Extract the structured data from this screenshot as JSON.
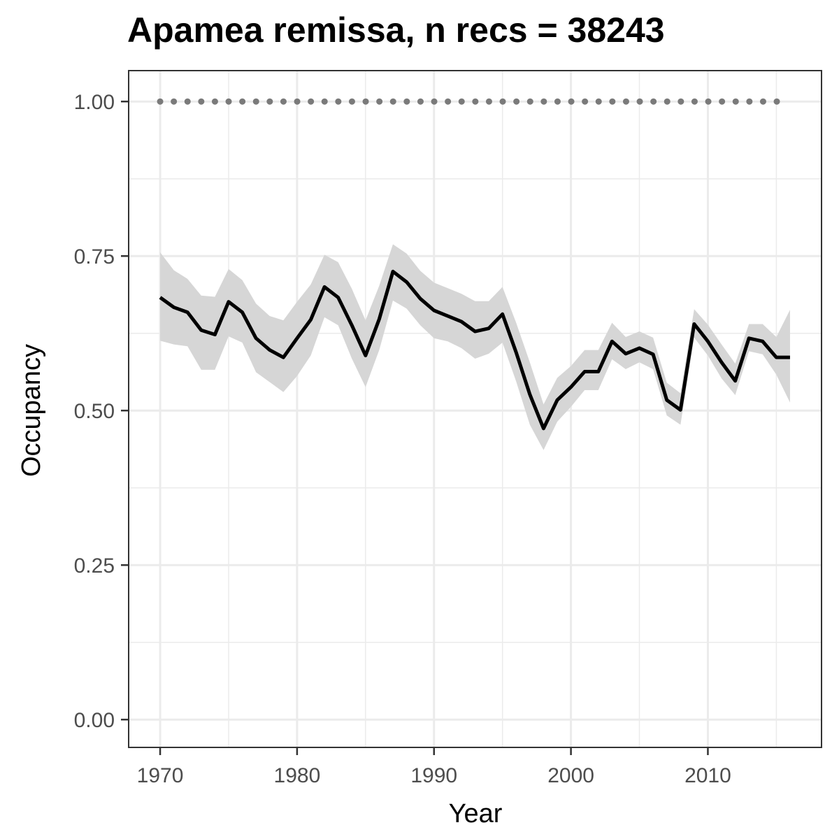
{
  "chart_data": {
    "type": "line",
    "title": "Apamea remissa, n recs = 38243",
    "xlabel": "Year",
    "ylabel": "Occupancy",
    "xlim": [
      1967.7,
      2018.3
    ],
    "ylim": [
      -0.045,
      1.05
    ],
    "x_ticks": [
      1970,
      1980,
      1990,
      2000,
      2010
    ],
    "y_ticks": [
      0.0,
      0.25,
      0.5,
      0.75,
      1.0
    ],
    "y_tick_labels": [
      "0.00",
      "0.25",
      "0.50",
      "0.75",
      "1.00"
    ],
    "grid": true,
    "colors": {
      "line": "#000000",
      "ribbon": "#d6d6d6",
      "dots": "#7a7a7a",
      "grid": "#ebebeb",
      "border": "#333333"
    },
    "series": [
      {
        "type": "line_with_ribbon",
        "x": [
          1970,
          1971,
          1972,
          1973,
          1974,
          1975,
          1976,
          1977,
          1978,
          1979,
          1980,
          1981,
          1982,
          1983,
          1984,
          1985,
          1986,
          1987,
          1988,
          1989,
          1990,
          1991,
          1992,
          1993,
          1994,
          1995,
          1996,
          1997,
          1998,
          1999,
          2000,
          2001,
          2002,
          2003,
          2004,
          2005,
          2006,
          2007,
          2008,
          2009,
          2010,
          2011,
          2012,
          2013,
          2014,
          2015,
          2016
        ],
        "y": [
          0.683,
          0.667,
          0.659,
          0.63,
          0.623,
          0.676,
          0.659,
          0.617,
          0.598,
          0.586,
          0.617,
          0.647,
          0.7,
          0.683,
          0.638,
          0.589,
          0.648,
          0.725,
          0.708,
          0.681,
          0.662,
          0.653,
          0.644,
          0.628,
          0.633,
          0.656,
          0.594,
          0.526,
          0.471,
          0.517,
          0.538,
          0.563,
          0.563,
          0.612,
          0.592,
          0.601,
          0.591,
          0.517,
          0.501,
          0.64,
          0.612,
          0.578,
          0.548,
          0.617,
          0.612,
          0.586,
          0.586
        ],
        "lower": [
          0.613,
          0.607,
          0.604,
          0.566,
          0.566,
          0.62,
          0.61,
          0.562,
          0.546,
          0.53,
          0.556,
          0.589,
          0.651,
          0.638,
          0.584,
          0.538,
          0.598,
          0.678,
          0.665,
          0.638,
          0.617,
          0.612,
          0.601,
          0.584,
          0.592,
          0.61,
          0.547,
          0.477,
          0.436,
          0.482,
          0.506,
          0.533,
          0.533,
          0.583,
          0.567,
          0.578,
          0.567,
          0.492,
          0.477,
          0.618,
          0.589,
          0.552,
          0.525,
          0.596,
          0.591,
          0.558,
          0.513
        ],
        "upper": [
          0.756,
          0.727,
          0.713,
          0.686,
          0.684,
          0.729,
          0.711,
          0.673,
          0.653,
          0.646,
          0.676,
          0.704,
          0.752,
          0.74,
          0.697,
          0.646,
          0.702,
          0.769,
          0.754,
          0.726,
          0.707,
          0.698,
          0.689,
          0.677,
          0.677,
          0.7,
          0.642,
          0.578,
          0.51,
          0.553,
          0.572,
          0.598,
          0.598,
          0.642,
          0.619,
          0.628,
          0.618,
          0.545,
          0.528,
          0.664,
          0.639,
          0.607,
          0.576,
          0.64,
          0.64,
          0.619,
          0.663
        ]
      },
      {
        "type": "dotted",
        "x": [
          1970,
          2016
        ],
        "y": [
          1.0,
          1.0
        ]
      }
    ]
  }
}
